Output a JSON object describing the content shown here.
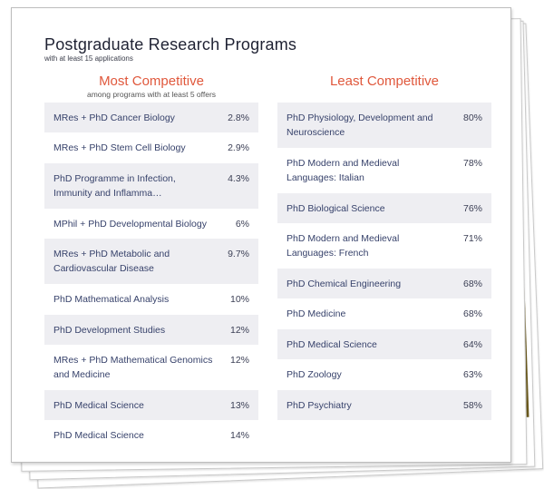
{
  "title": "Postgraduate Research Programs",
  "subtitle": "with at least 15 applications",
  "most": {
    "heading": "Most Competitive",
    "note": "among programs with at least 5 offers",
    "rows": [
      {
        "name": "MRes + PhD Cancer Biology",
        "pct": "2.8%"
      },
      {
        "name": "MRes + PhD Stem Cell Biology",
        "pct": "2.9%"
      },
      {
        "name": "PhD Programme in Infection, Immunity and Inflamma…",
        "pct": "4.3%"
      },
      {
        "name": "MPhil + PhD Developmental Biology",
        "pct": "6%"
      },
      {
        "name": "MRes + PhD Metabolic and Cardiovascular Disease",
        "pct": "9.7%"
      },
      {
        "name": "PhD Mathematical Analysis",
        "pct": "10%"
      },
      {
        "name": "PhD Development Studies",
        "pct": "12%"
      },
      {
        "name": "MRes + PhD Mathematical Genomics and Medicine",
        "pct": "12%"
      },
      {
        "name": "PhD Medical Science",
        "pct": "13%"
      },
      {
        "name": "PhD Medical Science",
        "pct": "14%"
      }
    ]
  },
  "least": {
    "heading": "Least Competitive",
    "rows": [
      {
        "name": "PhD Physiology, Development and Neuroscience",
        "pct": "80%"
      },
      {
        "name": "PhD Modern and Medieval Languages: Italian",
        "pct": "78%"
      },
      {
        "name": "PhD Biological Science",
        "pct": "76%"
      },
      {
        "name": "PhD Modern and Medieval Languages: French",
        "pct": "71%"
      },
      {
        "name": "PhD Chemical Engineering",
        "pct": "68%"
      },
      {
        "name": "PhD Medicine",
        "pct": "68%"
      },
      {
        "name": "PhD Medical Science",
        "pct": "64%"
      },
      {
        "name": "PhD Zoology",
        "pct": "63%"
      },
      {
        "name": "PhD Psychiatry",
        "pct": "58%"
      }
    ]
  }
}
